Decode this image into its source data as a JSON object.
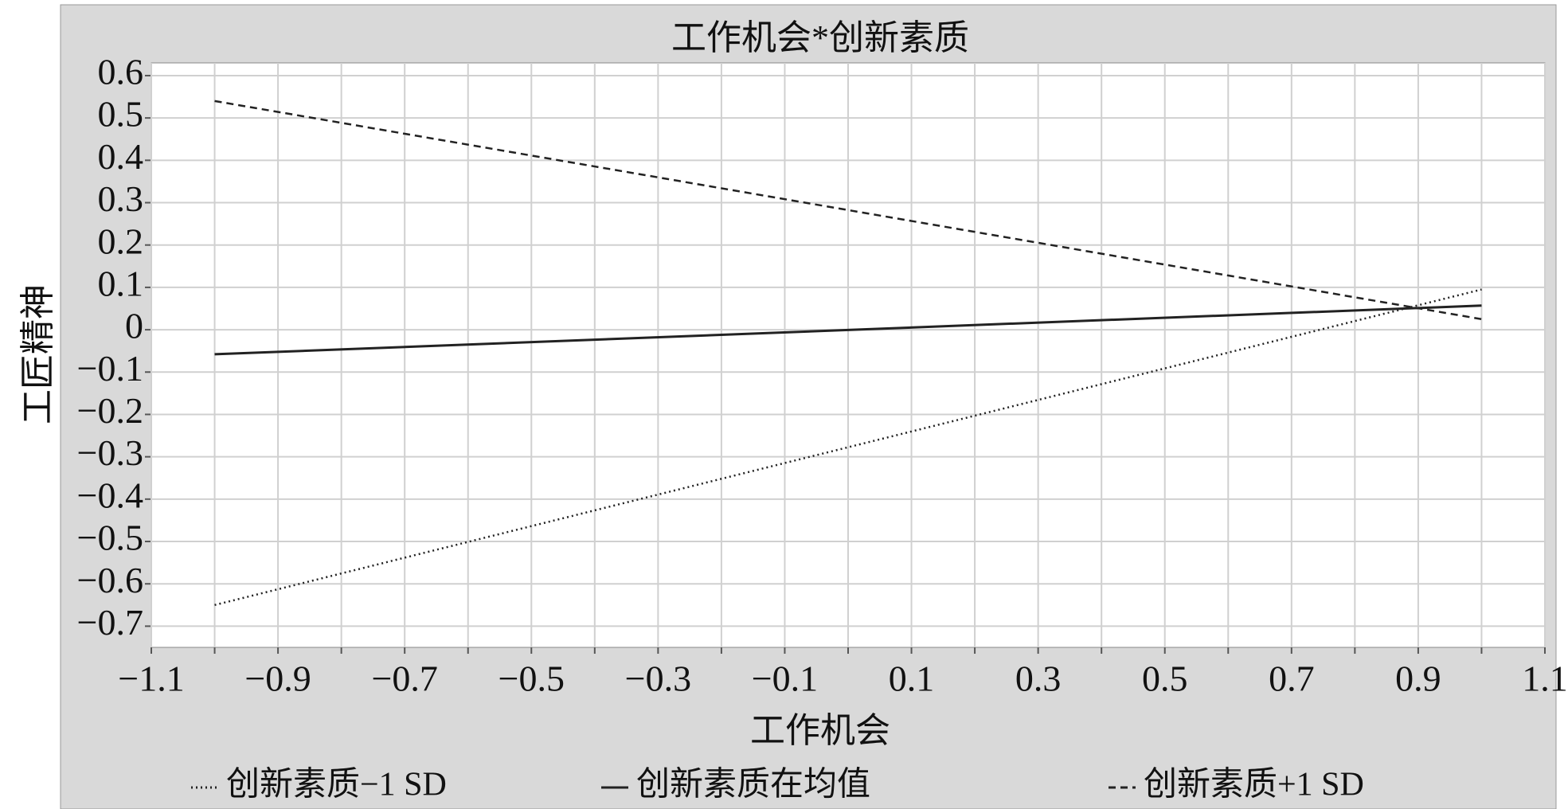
{
  "chart_data": {
    "type": "line",
    "title": "工作机会*创新素质",
    "xlabel": "工作机会",
    "ylabel": "工匠精神",
    "x": [
      -1,
      1
    ],
    "series": [
      {
        "name": "创新素质−1 SD",
        "color": "#222222",
        "dash": "dotted",
        "values": [
          -0.65,
          0.095
        ]
      },
      {
        "name": "创新素质在均值",
        "color": "#222222",
        "dash": "solid",
        "values": [
          -0.058,
          0.057
        ]
      },
      {
        "name": "创新素质+1 SD",
        "color": "#222222",
        "dash": "dashed",
        "values": [
          0.54,
          0.025
        ]
      }
    ],
    "xlim": [
      -1.1,
      1.1
    ],
    "xticks": [
      {
        "value": -1.1,
        "label": "−1.1"
      },
      {
        "value": -0.9,
        "label": "−0.9"
      },
      {
        "value": -0.7,
        "label": "−0.7"
      },
      {
        "value": -0.5,
        "label": "−0.5"
      },
      {
        "value": -0.3,
        "label": "−0.3"
      },
      {
        "value": -0.1,
        "label": "−0.1"
      },
      0.1,
      0.3,
      0.5,
      0.7,
      0.9,
      1.1
    ],
    "xminorticks": [
      -1.0,
      -0.8,
      -0.6,
      -0.4,
      -0.2,
      0,
      0.2,
      0.4,
      0.6,
      0.8,
      1.0
    ],
    "ylim": [
      -0.75,
      0.63
    ],
    "yticks": [
      {
        "value": -0.7,
        "label": "−0.7"
      },
      {
        "value": -0.6,
        "label": "−0.6"
      },
      {
        "value": -0.5,
        "label": "−0.5"
      },
      {
        "value": -0.4,
        "label": "−0.4"
      },
      {
        "value": -0.3,
        "label": "−0.3"
      },
      {
        "value": -0.2,
        "label": "−0.2"
      },
      {
        "value": -0.1,
        "label": "−0.1"
      },
      0,
      0.1,
      0.2,
      0.3,
      0.4,
      0.5,
      0.6
    ],
    "grid": true
  }
}
